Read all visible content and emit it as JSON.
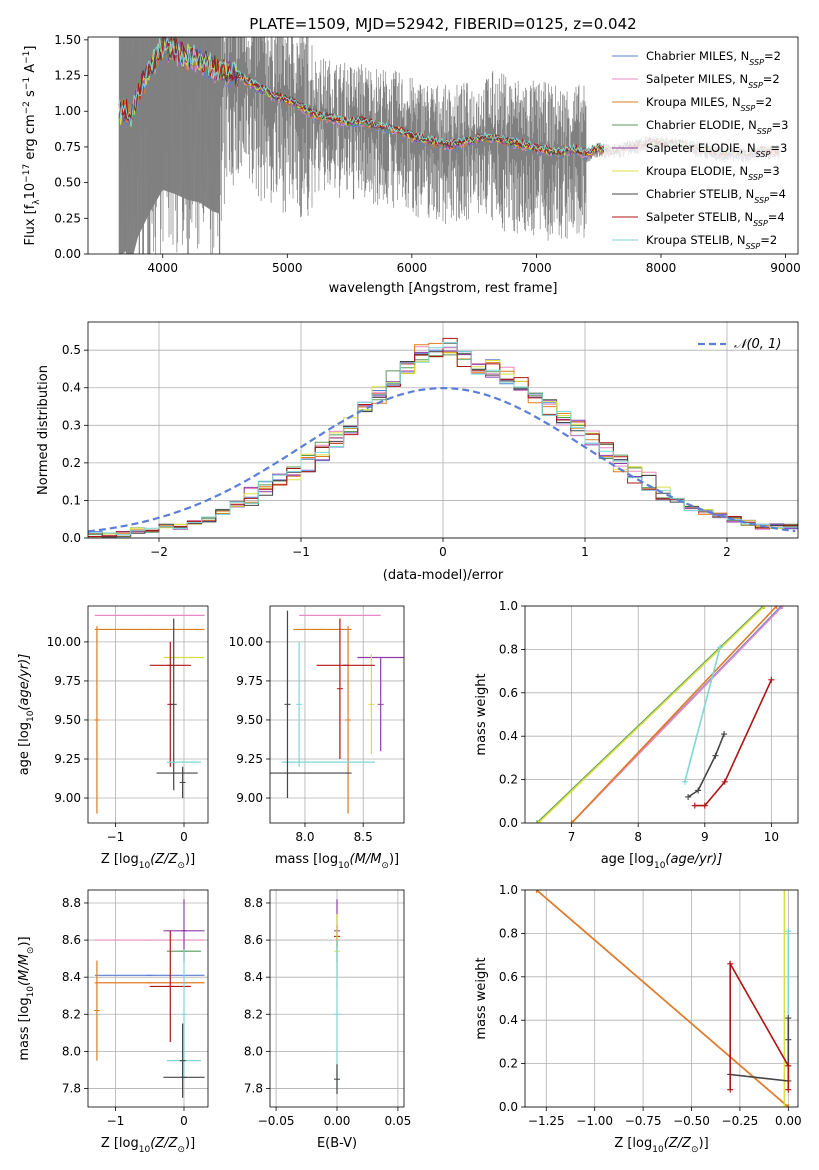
{
  "figure_title": "PLATE=1509, MJD=52942, FIBERID=0125, z=0.042",
  "series_styles": [
    {
      "name": "Chabrier MILES, N$_{SSP}$=2",
      "label_main": "Chabrier MILES, N",
      "label_sub": "SSP",
      "label_tail": "=2",
      "color": "#5b7fd6"
    },
    {
      "name": "Salpeter MILES, N$_{SSP}$=2",
      "label_main": "Salpeter MILES, N",
      "label_sub": "SSP",
      "label_tail": "=2",
      "color": "#e88ac1"
    },
    {
      "name": "Kroupa MILES, N$_{SSP}$=2",
      "label_main": "Kroupa MILES, N",
      "label_sub": "SSP",
      "label_tail": "=2",
      "color": "#e07b20"
    },
    {
      "name": "Chabrier ELODIE, N$_{SSP}$=3",
      "label_main": "Chabrier ELODIE, N",
      "label_sub": "SSP",
      "label_tail": "=3",
      "color": "#5a9a5a"
    },
    {
      "name": "Salpeter ELODIE, N$_{SSP}$=3",
      "label_main": "Salpeter ELODIE, N",
      "label_sub": "SSP",
      "label_tail": "=3",
      "color": "#8e3fa6"
    },
    {
      "name": "Kroupa ELODIE, N$_{SSP}$=3",
      "label_main": "Kroupa ELODIE, N",
      "label_sub": "SSP",
      "label_tail": "=3",
      "color": "#d8e040"
    },
    {
      "name": "Chabrier STELIB, N$_{SSP}$=4",
      "label_main": "Chabrier STELIB, N",
      "label_sub": "SSP",
      "label_tail": "=4",
      "color": "#444444"
    },
    {
      "name": "Salpeter STELIB, N$_{SSP}$=4",
      "label_main": "Salpeter STELIB, N",
      "label_sub": "SSP",
      "label_tail": "=4",
      "color": "#b01515"
    },
    {
      "name": "Kroupa STELIB, N$_{SSP}$=2",
      "label_main": "Kroupa STELIB, N",
      "label_sub": "SSP",
      "label_tail": "=2",
      "color": "#7fd6d6"
    }
  ],
  "chart_data": [
    {
      "id": "spectrum",
      "type": "line",
      "title": "PLATE=1509, MJD=52942, FIBERID=0125, z=0.042",
      "xlabel": "wavelength [Angstrom, rest frame]",
      "ylabel_main": "Flux [f",
      "ylabel_lambda": "λ",
      "ylabel_unit": "10",
      "ylabel_exp": "−17",
      "ylabel_rest": " erg cm",
      "ylabel_exp2": "−2",
      "ylabel_s": " s",
      "ylabel_exp3": "−1",
      "ylabel_A": " A",
      "ylabel_exp4": "−1",
      "ylabel_close": "]",
      "xlim": [
        3400,
        9100
      ],
      "ylim": [
        0.0,
        1.52
      ],
      "xticks": [
        4000,
        5000,
        6000,
        7000,
        8000,
        9000
      ],
      "xtick_labels": [
        "4000",
        "5000",
        "6000",
        "7000",
        "8000",
        "9000"
      ],
      "yticks": [
        0.0,
        0.25,
        0.5,
        0.75,
        1.0,
        1.25,
        1.5
      ],
      "ytick_labels": [
        "0.00",
        "0.25",
        "0.50",
        "0.75",
        "1.00",
        "1.25",
        "1.50"
      ],
      "legend_position": "upper-right",
      "grid": false,
      "data_color": "#808080",
      "continuum": {
        "x": [
          3650,
          3700,
          3750,
          3800,
          3900,
          4000,
          4100,
          4200,
          4300,
          4400,
          4500,
          4600,
          4700,
          4800,
          4900,
          5000,
          5100,
          5200,
          5300,
          5400,
          5500,
          5600,
          5700,
          5800,
          5900,
          6000,
          6100,
          6200,
          6300,
          6400,
          6500,
          6600,
          6700,
          6800,
          6900,
          7000,
          7100,
          7200,
          7300,
          7400,
          7500,
          7600,
          7700,
          7800,
          7900,
          8000,
          8100,
          8200,
          8300,
          8400,
          8500,
          8600,
          8700,
          8800,
          8900
        ],
        "y": [
          0.98,
          1.02,
          0.95,
          1.12,
          1.3,
          1.45,
          1.42,
          1.38,
          1.36,
          1.3,
          1.27,
          1.25,
          1.2,
          1.15,
          1.1,
          1.08,
          1.04,
          0.98,
          0.96,
          0.94,
          0.92,
          0.93,
          0.9,
          0.88,
          0.86,
          0.82,
          0.8,
          0.78,
          0.76,
          0.78,
          0.8,
          0.82,
          0.8,
          0.78,
          0.76,
          0.74,
          0.72,
          0.71,
          0.73,
          0.7,
          0.74,
          0.72,
          0.74,
          0.76,
          0.78,
          0.78,
          0.77,
          0.76,
          0.74,
          0.72,
          0.7,
          0.71,
          0.7,
          0.72,
          0.72
        ]
      }
    },
    {
      "id": "residuals",
      "type": "histogram",
      "xlabel": "(data-model)/error",
      "ylabel": "Normed distribution",
      "xlim": [
        -2.5,
        2.5
      ],
      "ylim": [
        0.0,
        0.575
      ],
      "xticks": [
        -2,
        -1,
        0,
        1,
        2
      ],
      "xtick_labels": [
        "−2",
        "−1",
        "0",
        "1",
        "2"
      ],
      "yticks": [
        0.0,
        0.1,
        0.2,
        0.3,
        0.4,
        0.5
      ],
      "ytick_labels": [
        "0.0",
        "0.1",
        "0.2",
        "0.3",
        "0.4",
        "0.5"
      ],
      "grid": true,
      "legend_label": "𝒩(0, 1)",
      "legend_position": "upper-right",
      "gaussian_mean": 0,
      "gaussian_sigma": 1,
      "gaussian_color": "#5b7fd6",
      "bin_edges_start": -2.5,
      "bin_width": 0.1,
      "histogram_values": [
        0.01,
        0.01,
        0.01,
        0.02,
        0.02,
        0.03,
        0.03,
        0.04,
        0.05,
        0.07,
        0.09,
        0.11,
        0.13,
        0.15,
        0.18,
        0.2,
        0.23,
        0.26,
        0.3,
        0.34,
        0.38,
        0.42,
        0.46,
        0.49,
        0.5,
        0.51,
        0.48,
        0.46,
        0.45,
        0.43,
        0.41,
        0.38,
        0.35,
        0.32,
        0.29,
        0.26,
        0.23,
        0.2,
        0.17,
        0.15,
        0.12,
        0.1,
        0.08,
        0.07,
        0.06,
        0.05,
        0.04,
        0.03,
        0.03,
        0.03
      ]
    },
    {
      "id": "age_vs_Z",
      "type": "errorbar",
      "xlabel_main": "Z [log",
      "xlabel_sub": "10",
      "xlabel_tail": "(Z/Z",
      "xlabel_sun": "⊙",
      "xlabel_end": ")]",
      "ylabel_main": "age  [log",
      "ylabel_sub": "10",
      "ylabel_tail": "(age/yr)]",
      "xlim": [
        -1.4,
        0.35
      ],
      "ylim": [
        8.84,
        10.23
      ],
      "xticks": [
        -1,
        0
      ],
      "xtick_labels": [
        "−1",
        "0"
      ],
      "yticks": [
        9.0,
        9.25,
        9.5,
        9.75,
        10.0
      ],
      "ytick_labels": [
        "9.00",
        "9.25",
        "9.50",
        "9.75",
        "10.00"
      ],
      "grid": true,
      "points": [
        {
          "series": 1,
          "x": -0.5,
          "xerr": 0.8,
          "y": 10.17,
          "yerr": 0.0
        },
        {
          "series": 2,
          "x": -0.5,
          "xerr": 0.8,
          "y": 10.08,
          "yerr": 0.0
        },
        {
          "series": 2,
          "x": -1.27,
          "xerr": 0.0,
          "y": 9.5,
          "yerr": 0.6
        },
        {
          "series": 5,
          "x": 0.0,
          "xerr": 0.3,
          "y": 9.9,
          "yerr": 0.0
        },
        {
          "series": 7,
          "x": -0.2,
          "xerr": 0.3,
          "y": 9.85,
          "yerr": 0.0
        },
        {
          "series": 7,
          "x": -0.2,
          "xerr": 0.0,
          "y": 9.6,
          "yerr": 0.4
        },
        {
          "series": 6,
          "x": -0.15,
          "xerr": 0.0,
          "y": 9.6,
          "yerr": 0.55
        },
        {
          "series": 8,
          "x": 0.0,
          "xerr": 0.25,
          "y": 9.23,
          "yerr": 0.0
        },
        {
          "series": 6,
          "x": -0.1,
          "xerr": 0.3,
          "y": 9.16,
          "yerr": 0.0
        },
        {
          "series": 6,
          "x": -0.02,
          "xerr": 0.0,
          "y": 9.1,
          "yerr": 0.1
        }
      ]
    },
    {
      "id": "age_vs_mass",
      "type": "errorbar",
      "xlabel_main": "mass [log",
      "xlabel_sub": "10",
      "xlabel_tail": "(M/M",
      "xlabel_sun": "⊙",
      "xlabel_end": ")]",
      "xlim": [
        7.7,
        8.85
      ],
      "ylim": [
        8.84,
        10.23
      ],
      "xticks": [
        8.0,
        8.5
      ],
      "xtick_labels": [
        "8.0",
        "8.5"
      ],
      "yticks": [
        9.0,
        9.25,
        9.5,
        9.75,
        10.0
      ],
      "ytick_labels": [
        "9.00",
        "9.25",
        "9.50",
        "9.75",
        "10.00"
      ],
      "grid": true,
      "points": [
        {
          "series": 1,
          "x": 8.3,
          "xerr": 0.35,
          "y": 10.17,
          "yerr": 0.0
        },
        {
          "series": 2,
          "x": 8.15,
          "xerr": 0.25,
          "y": 10.08,
          "yerr": 0.0
        },
        {
          "series": 2,
          "x": 8.37,
          "xerr": 0.0,
          "y": 9.5,
          "yerr": 0.6
        },
        {
          "series": 4,
          "x": 8.65,
          "xerr": 0.2,
          "y": 9.9,
          "yerr": 0.0
        },
        {
          "series": 4,
          "x": 8.65,
          "xerr": 0.0,
          "y": 9.6,
          "yerr": 0.3
        },
        {
          "series": 5,
          "x": 8.57,
          "xerr": 0.0,
          "y": 9.6,
          "yerr": 0.32
        },
        {
          "series": 7,
          "x": 8.35,
          "xerr": 0.25,
          "y": 9.85,
          "yerr": 0.0
        },
        {
          "series": 7,
          "x": 8.3,
          "xerr": 0.0,
          "y": 9.7,
          "yerr": 0.45
        },
        {
          "series": 8,
          "x": 7.95,
          "xerr": 0.0,
          "y": 9.6,
          "yerr": 0.4
        },
        {
          "series": 8,
          "x": 8.2,
          "xerr": 0.4,
          "y": 9.23,
          "yerr": 0.0
        },
        {
          "series": 6,
          "x": 8.05,
          "xerr": 0.35,
          "y": 9.16,
          "yerr": 0.0
        },
        {
          "series": 6,
          "x": 7.85,
          "xerr": 0.0,
          "y": 9.6,
          "yerr": 0.6
        }
      ]
    },
    {
      "id": "massweight_vs_age",
      "type": "line",
      "xlabel_main": "age  [log",
      "xlabel_sub": "10",
      "xlabel_tail": "(age/yr)]",
      "ylabel": "mass weight",
      "xlim": [
        6.3,
        10.4
      ],
      "ylim": [
        0.0,
        1.0
      ],
      "xticks": [
        7,
        8,
        9,
        10
      ],
      "xtick_labels": [
        "7",
        "8",
        "9",
        "10"
      ],
      "yticks": [
        0.0,
        0.2,
        0.4,
        0.6,
        0.8,
        1.0
      ],
      "ytick_labels": [
        "0.0",
        "0.2",
        "0.4",
        "0.6",
        "0.8",
        "1.0"
      ],
      "grid": true,
      "lines": [
        {
          "series": 0,
          "x": [
            7.0,
            10.15
          ],
          "y": [
            0.0,
            1.0
          ]
        },
        {
          "series": 1,
          "x": [
            7.0,
            10.17
          ],
          "y": [
            0.0,
            1.0
          ]
        },
        {
          "series": 2,
          "x": [
            7.0,
            10.08
          ],
          "y": [
            0.0,
            1.0
          ]
        },
        {
          "series": 3,
          "x": [
            6.48,
            9.88
          ],
          "y": [
            0.0,
            1.0
          ]
        },
        {
          "series": 5,
          "x": [
            6.5,
            9.9
          ],
          "y": [
            0.0,
            1.0
          ]
        },
        {
          "series": 8,
          "x": [
            8.7,
            9.23
          ],
          "y": [
            0.19,
            0.81
          ]
        },
        {
          "series": 6,
          "x": [
            8.75,
            8.9,
            9.16,
            9.29
          ],
          "y": [
            0.12,
            0.15,
            0.31,
            0.41
          ]
        },
        {
          "series": 7,
          "x": [
            8.85,
            9.0,
            9.3,
            10.0
          ],
          "y": [
            0.08,
            0.08,
            0.19,
            0.66
          ]
        }
      ]
    },
    {
      "id": "mass_vs_Z",
      "type": "errorbar",
      "xlabel_main": "Z [log",
      "xlabel_sub": "10",
      "xlabel_tail": "(Z/Z",
      "xlabel_sun": "⊙",
      "xlabel_end": ")]",
      "ylabel_main": "mass [log",
      "ylabel_sub": "10",
      "ylabel_tail": "(M/M",
      "ylabel_sun": "⊙",
      "ylabel_end": ")]",
      "xlim": [
        -1.4,
        0.35
      ],
      "ylim": [
        7.7,
        8.87
      ],
      "xticks": [
        -1,
        0
      ],
      "xtick_labels": [
        "−1",
        "0"
      ],
      "yticks": [
        7.8,
        8.0,
        8.2,
        8.4,
        8.6,
        8.8
      ],
      "ytick_labels": [
        "7.8",
        "8.0",
        "8.2",
        "8.4",
        "8.6",
        "8.8"
      ],
      "grid": true,
      "points": [
        {
          "series": 1,
          "x": -0.5,
          "xerr": 0.8,
          "y": 8.6,
          "yerr": 0.0
        },
        {
          "series": 0,
          "x": -0.5,
          "xerr": 0.8,
          "y": 8.41,
          "yerr": 0.0
        },
        {
          "series": 2,
          "x": -0.5,
          "xerr": 0.8,
          "y": 8.37,
          "yerr": 0.0
        },
        {
          "series": 2,
          "x": -1.27,
          "xerr": 0.0,
          "y": 8.22,
          "yerr": 0.27
        },
        {
          "series": 4,
          "x": 0.0,
          "xerr": 0.3,
          "y": 8.65,
          "yerr": 0.0
        },
        {
          "series": 4,
          "x": 0.0,
          "xerr": 0.0,
          "y": 8.65,
          "yerr": 0.17
        },
        {
          "series": 3,
          "x": 0.0,
          "xerr": 0.25,
          "y": 8.54,
          "yerr": 0.0
        },
        {
          "series": 7,
          "x": -0.2,
          "xerr": 0.3,
          "y": 8.35,
          "yerr": 0.0
        },
        {
          "series": 7,
          "x": -0.2,
          "xerr": 0.0,
          "y": 8.35,
          "yerr": 0.3
        },
        {
          "series": 8,
          "x": 0.0,
          "xerr": 0.25,
          "y": 7.95,
          "yerr": 0.0
        },
        {
          "series": 8,
          "x": 0.0,
          "xerr": 0.0,
          "y": 8.2,
          "yerr": 0.35
        },
        {
          "series": 6,
          "x": 0.0,
          "xerr": 0.3,
          "y": 7.86,
          "yerr": 0.0
        },
        {
          "series": 6,
          "x": -0.02,
          "xerr": 0.0,
          "y": 7.95,
          "yerr": 0.2
        }
      ]
    },
    {
      "id": "mass_vs_EBV",
      "type": "errorbar",
      "xlabel": "E(B-V)",
      "xlim": [
        -0.055,
        0.055
      ],
      "ylim": [
        7.7,
        8.87
      ],
      "xticks": [
        -0.05,
        0.0,
        0.05
      ],
      "xtick_labels": [
        "−0.05",
        "0.00",
        "0.05"
      ],
      "yticks": [
        7.8,
        8.0,
        8.2,
        8.4,
        8.6,
        8.8
      ],
      "ytick_labels": [
        "7.8",
        "8.0",
        "8.2",
        "8.4",
        "8.6",
        "8.8"
      ],
      "grid": true,
      "points": [
        {
          "series": 4,
          "x": 0.0,
          "xerr": 0.0,
          "y": 8.65,
          "yerr": 0.17
        },
        {
          "series": 7,
          "x": 0.0,
          "xerr": 0.0,
          "y": 8.62,
          "yerr": 0.06
        },
        {
          "series": 5,
          "x": 0.0,
          "xerr": 0.0,
          "y": 8.54,
          "yerr": 0.2
        },
        {
          "series": 8,
          "x": 0.0,
          "xerr": 0.0,
          "y": 8.2,
          "yerr": 0.4
        },
        {
          "series": 6,
          "x": 0.0,
          "xerr": 0.0,
          "y": 7.85,
          "yerr": 0.08
        }
      ]
    },
    {
      "id": "massweight_vs_Z",
      "type": "line",
      "xlabel_main": "Z [log",
      "xlabel_sub": "10",
      "xlabel_tail": "(Z/Z",
      "xlabel_sun": "⊙",
      "xlabel_end": ")]",
      "ylabel": "mass weight",
      "xlim": [
        -1.36,
        0.05
      ],
      "ylim": [
        0.0,
        1.0
      ],
      "xticks": [
        -1.25,
        -1.0,
        -0.75,
        -0.5,
        -0.25,
        0.0
      ],
      "xtick_labels": [
        "−1.25",
        "−1.00",
        "−0.75",
        "−0.50",
        "−0.25",
        "0.00"
      ],
      "yticks": [
        0.0,
        0.2,
        0.4,
        0.6,
        0.8,
        1.0
      ],
      "ytick_labels": [
        "0.0",
        "0.2",
        "0.4",
        "0.6",
        "0.8",
        "1.0"
      ],
      "grid": true,
      "lines": [
        {
          "series": 1,
          "x": [
            -1.3,
            0.0
          ],
          "y": [
            1.0,
            0.0
          ]
        },
        {
          "series": 2,
          "x": [
            -1.3,
            0.0
          ],
          "y": [
            1.0,
            0.0
          ]
        },
        {
          "series": 5,
          "x": [
            -0.02,
            -0.02
          ],
          "y": [
            0.0,
            1.0
          ]
        },
        {
          "series": 8,
          "x": [
            0.0,
            0.0
          ],
          "y": [
            0.19,
            0.81
          ]
        },
        {
          "series": 6,
          "x": [
            -0.3,
            0.0,
            0.0,
            0.0
          ],
          "y": [
            0.15,
            0.12,
            0.31,
            0.41
          ]
        },
        {
          "series": 7,
          "x": [
            -0.3,
            -0.3,
            0.0,
            0.0
          ],
          "y": [
            0.08,
            0.66,
            0.19,
            0.08
          ]
        }
      ]
    }
  ]
}
